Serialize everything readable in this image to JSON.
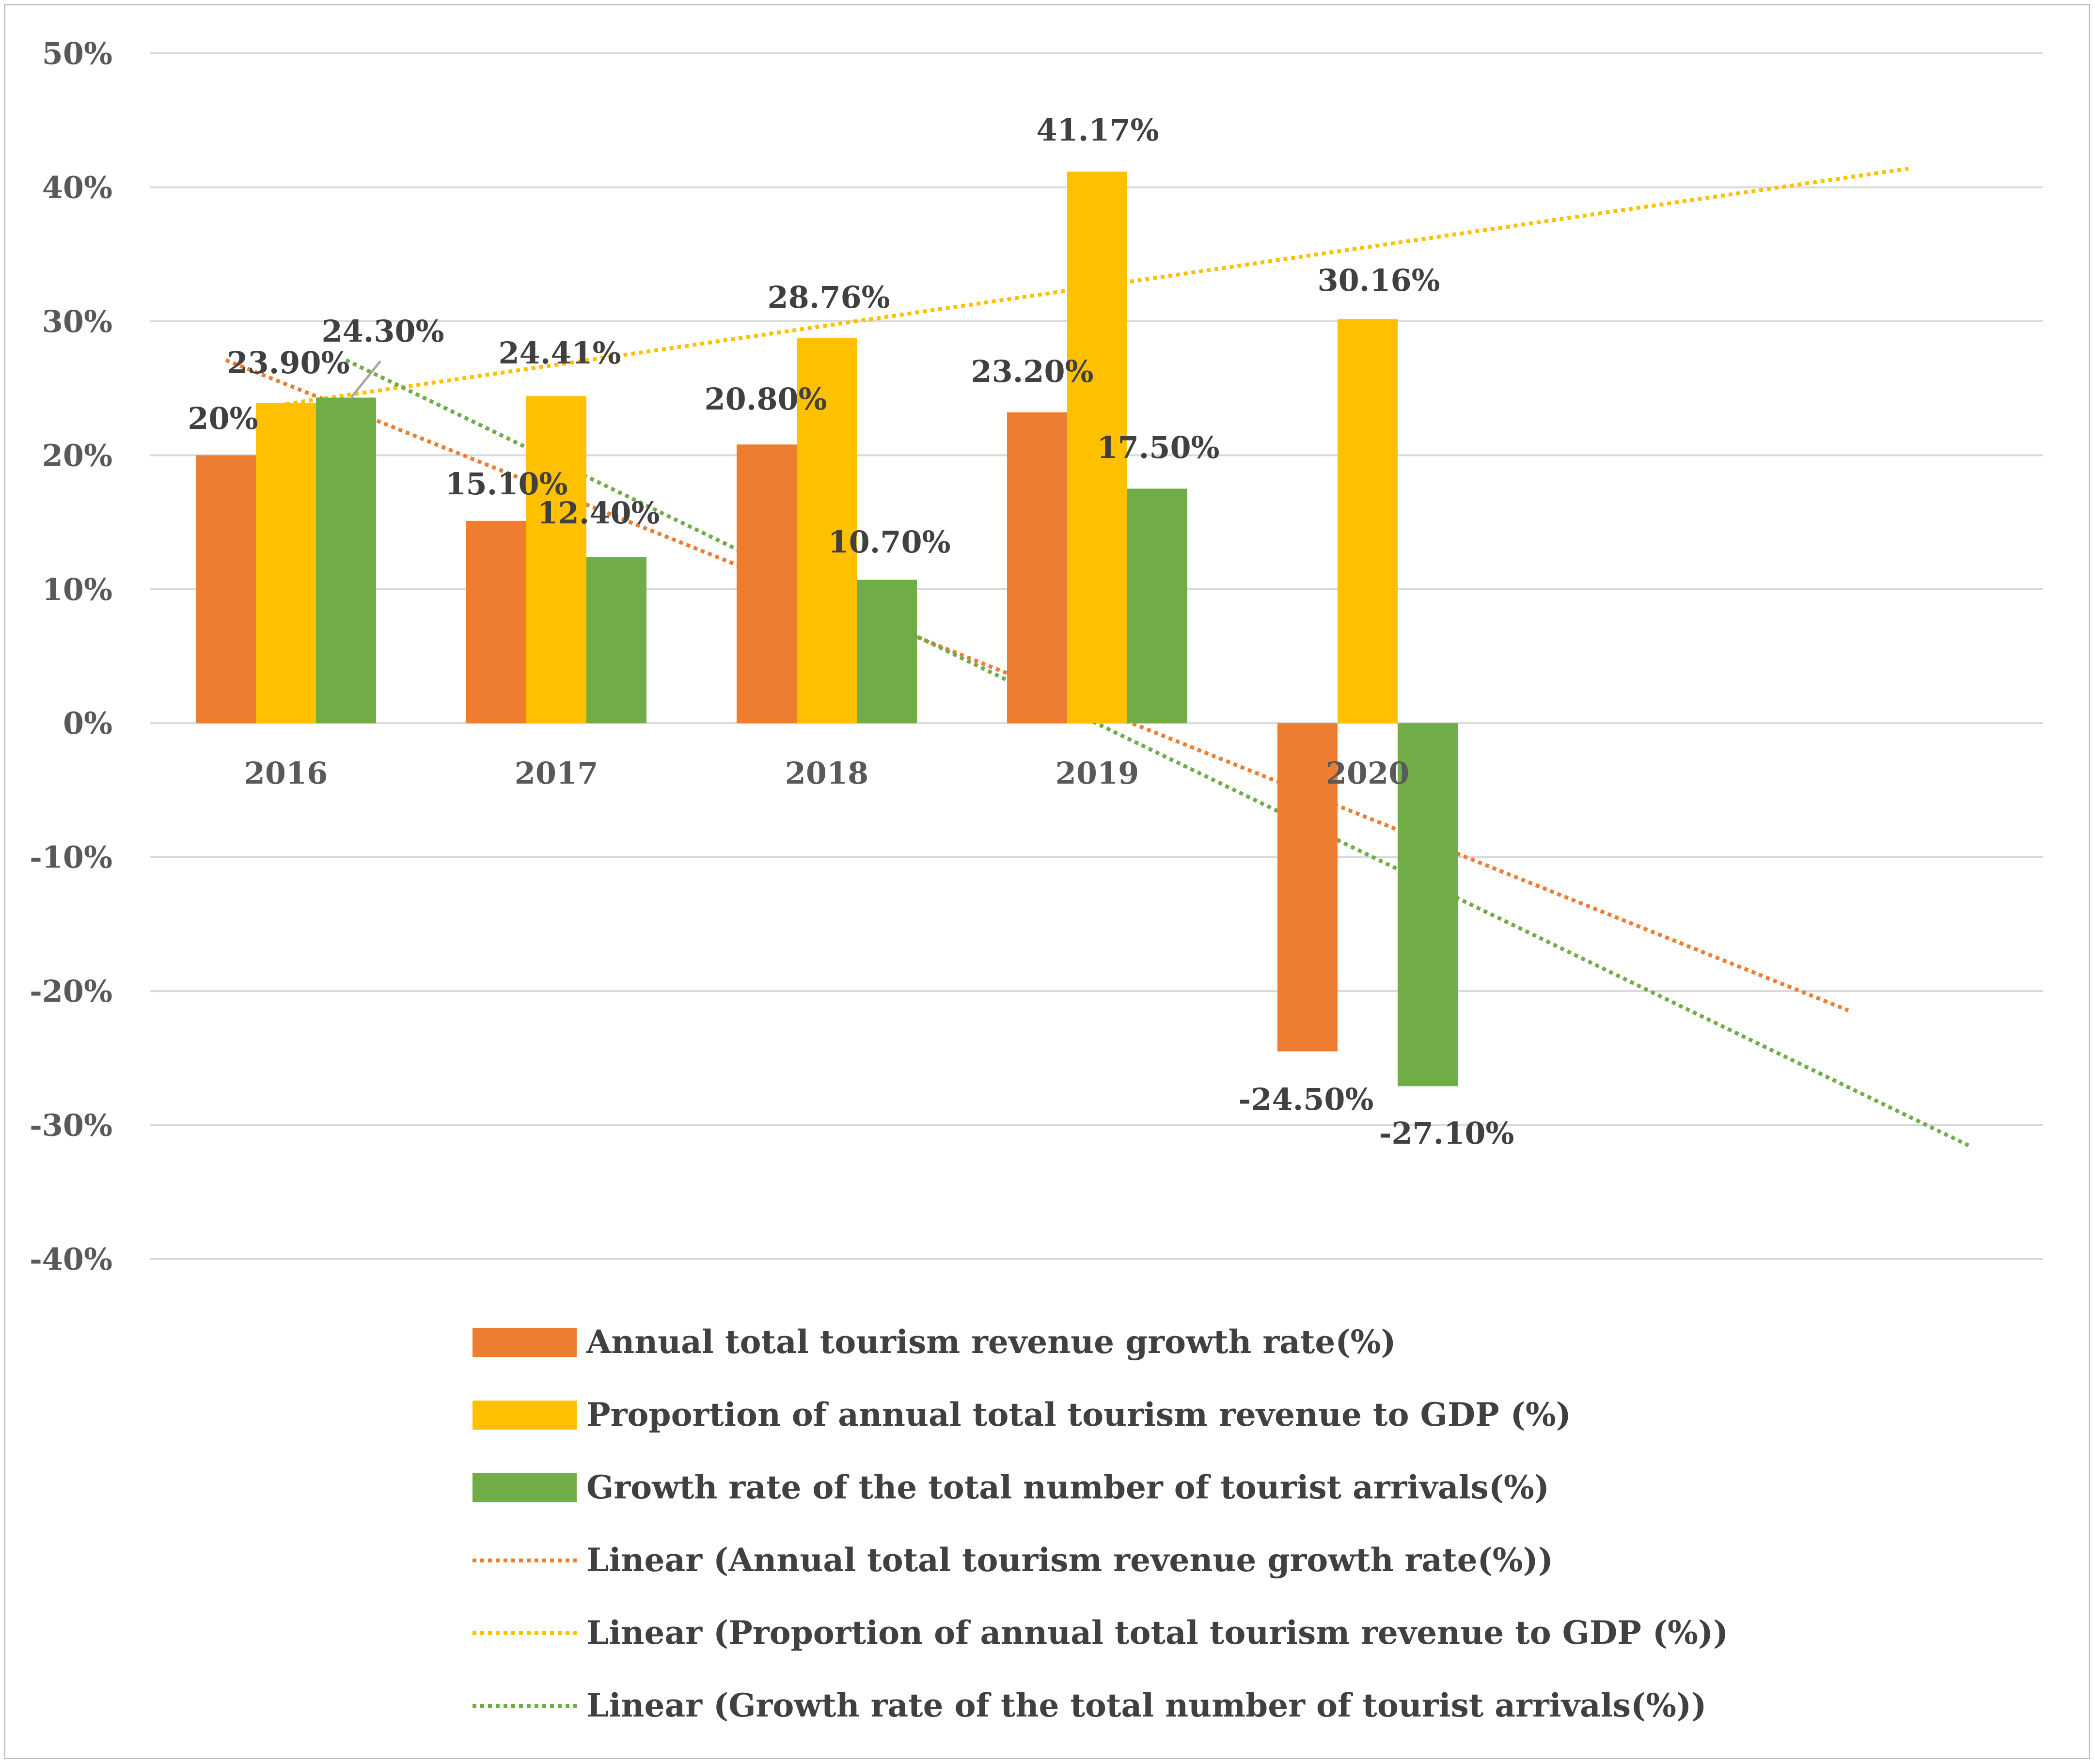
{
  "chart_data": {
    "type": "bar",
    "title": "",
    "xlabel": "",
    "ylabel": "",
    "ylim": [
      -40,
      50
    ],
    "y_ticks": [
      50,
      40,
      30,
      20,
      10,
      0,
      -10,
      -20,
      -30,
      -40
    ],
    "y_tick_labels": [
      "50%",
      "40%",
      "30%",
      "20%",
      "10%",
      "0%",
      "-10%",
      "-20%",
      "-30%",
      "-40%"
    ],
    "grid": true,
    "categories": [
      "2016",
      "2017",
      "2018",
      "2019",
      "2020"
    ],
    "series": [
      {
        "name": "Annual total tourism revenue growth rate(%)",
        "color": "#ED7D31",
        "values": [
          20,
          15.1,
          20.8,
          23.2,
          -24.5
        ],
        "labels": [
          "20%",
          "15.10%",
          "20.80%",
          "23.20%",
          "-24.50%"
        ]
      },
      {
        "name": "Proportion of annual total tourism revenue to GDP (%)",
        "color": "#FFC000",
        "values": [
          23.9,
          24.41,
          28.76,
          41.17,
          30.16
        ],
        "labels": [
          "23.90%",
          "24.41%",
          "28.76%",
          "41.17%",
          "30.16%"
        ]
      },
      {
        "name": "Growth rate of the total number of tourist arrivals(%)",
        "color": "#70AD47",
        "values": [
          24.3,
          12.4,
          10.7,
          17.5,
          -27.1
        ],
        "labels": [
          "24.30%",
          "12.40%",
          "10.70%",
          "17.50%",
          "-27.10%"
        ]
      }
    ],
    "trendlines": [
      {
        "name": "Linear (Annual total tourism revenue growth rate(%))",
        "series_index": 0,
        "type": "linear",
        "forward_periods": 2,
        "color": "#ED7D31"
      },
      {
        "name": "Linear (Proportion of annual total tourism revenue to GDP (%))",
        "series_index": 1,
        "type": "linear",
        "forward_periods": 2,
        "color": "#FFC000"
      },
      {
        "name": "Linear (Growth rate of the total number of tourist arrivals(%))",
        "series_index": 2,
        "type": "linear",
        "forward_periods": 2,
        "color": "#70AD47"
      }
    ],
    "legend_position": "bottom"
  },
  "colors": {
    "grid": "#D9D9D9",
    "axis_text": "#595959",
    "label_text": "#404040",
    "frame": "#BFBFBF"
  }
}
